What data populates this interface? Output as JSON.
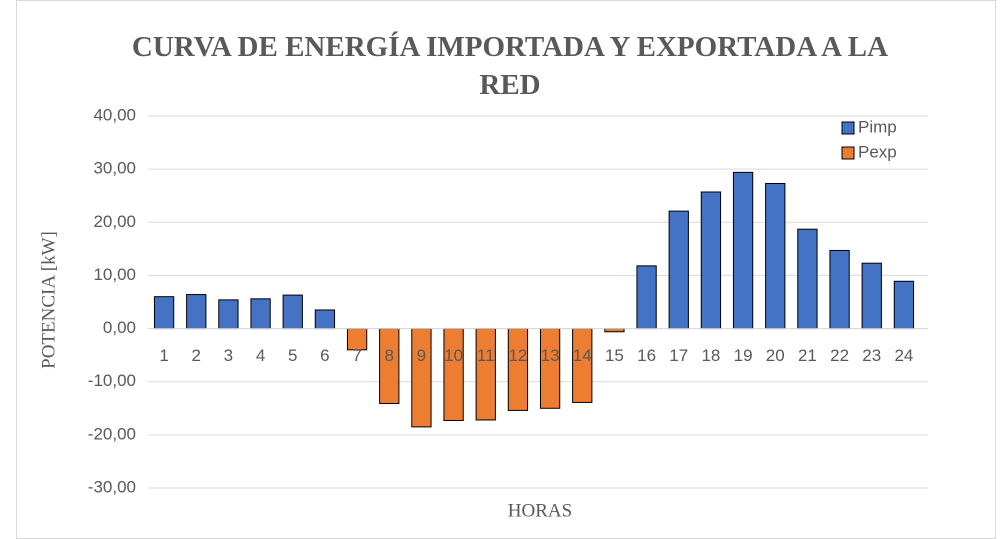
{
  "chart_data": {
    "type": "bar",
    "title": "CURVA DE ENERGÍA IMPORTADA Y EXPORTADA A LA RED",
    "x_label": "HORAS",
    "y_label": "POTENCIA  [kW]",
    "categories": [
      "1",
      "2",
      "3",
      "4",
      "5",
      "6",
      "7",
      "8",
      "9",
      "10",
      "11",
      "12",
      "13",
      "14",
      "15",
      "16",
      "17",
      "18",
      "19",
      "20",
      "21",
      "22",
      "23",
      "24"
    ],
    "series": [
      {
        "name": "Pimp",
        "color": "#4472c4",
        "values": [
          6.0,
          6.4,
          5.4,
          5.6,
          6.3,
          3.5,
          0,
          0,
          0,
          0,
          0,
          0,
          0,
          0,
          0,
          11.8,
          22.1,
          25.7,
          29.4,
          27.3,
          18.7,
          14.7,
          12.3,
          8.9
        ]
      },
      {
        "name": "Pexp",
        "color": "#ed7d31",
        "values": [
          0,
          0,
          0,
          0,
          0,
          0,
          -4.0,
          -14.1,
          -18.5,
          -17.3,
          -17.2,
          -15.4,
          -15.0,
          -13.9,
          -0.6,
          0,
          0,
          0,
          0,
          0,
          0,
          0,
          0,
          0
        ]
      }
    ],
    "ylim": [
      -30,
      40
    ],
    "yticks": [
      {
        "value": -30,
        "label": "-30,00"
      },
      {
        "value": -20,
        "label": "-20,00"
      },
      {
        "value": -10,
        "label": "-10,00"
      },
      {
        "value": 0,
        "label": "0,00"
      },
      {
        "value": 10,
        "label": "10,00"
      },
      {
        "value": 20,
        "label": "20,00"
      },
      {
        "value": 30,
        "label": "30,00"
      },
      {
        "value": 40,
        "label": "40,00"
      }
    ],
    "grid": true,
    "legend": "top-right"
  }
}
